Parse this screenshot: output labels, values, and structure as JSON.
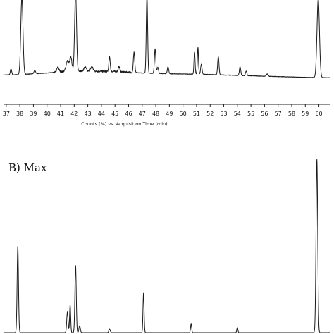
{
  "chart_data": [
    {
      "type": "line",
      "panel": "A",
      "title": "",
      "xlabel": "Counts (%) vs. Acquisition Time (min)",
      "ylabel": "",
      "xlim": [
        36.8,
        60.8
      ],
      "ylim": [
        0,
        100
      ],
      "ticks": [
        "37",
        "38",
        "39",
        "40",
        "41",
        "42",
        "43",
        "44",
        "45",
        "46",
        "47",
        "48",
        "49",
        "50",
        "51",
        "52",
        "53",
        "54",
        "55",
        "56",
        "57",
        "58",
        "59",
        "60"
      ],
      "baseline": [
        [
          36.8,
          5.0
        ],
        [
          38.0,
          5.5
        ],
        [
          40.0,
          7.5
        ],
        [
          41.0,
          9.0
        ],
        [
          42.0,
          10.5
        ],
        [
          43.0,
          10.0
        ],
        [
          44.0,
          9.5
        ],
        [
          45.0,
          9.5
        ],
        [
          46.0,
          8.5
        ],
        [
          47.0,
          7.5
        ],
        [
          48.0,
          7.0
        ],
        [
          49.0,
          6.5
        ],
        [
          50.0,
          6.3
        ],
        [
          51.0,
          6.0
        ],
        [
          52.0,
          5.6
        ],
        [
          53.0,
          5.0
        ],
        [
          54.0,
          4.5
        ],
        [
          55.0,
          4.0
        ],
        [
          56.0,
          3.5
        ],
        [
          57.0,
          3.0
        ],
        [
          58.0,
          2.5
        ],
        [
          59.0,
          2.0
        ],
        [
          60.8,
          1.5
        ]
      ],
      "peaks": [
        {
          "t": 37.35,
          "h": 7.5,
          "w": 0.05
        },
        {
          "t": 38.15,
          "h": 98,
          "w": 0.08
        },
        {
          "t": 39.1,
          "h": 4,
          "w": 0.06
        },
        {
          "t": 40.8,
          "h": 6,
          "w": 0.08
        },
        {
          "t": 41.5,
          "h": 13,
          "w": 0.1
        },
        {
          "t": 41.75,
          "h": 17,
          "w": 0.08
        },
        {
          "t": 42.1,
          "h": 100,
          "w": 0.07
        },
        {
          "t": 42.8,
          "h": 5,
          "w": 0.08
        },
        {
          "t": 43.3,
          "h": 6,
          "w": 0.08
        },
        {
          "t": 44.6,
          "h": 18,
          "w": 0.05
        },
        {
          "t": 45.3,
          "h": 6,
          "w": 0.06
        },
        {
          "t": 46.4,
          "h": 26,
          "w": 0.05
        },
        {
          "t": 47.35,
          "h": 100,
          "w": 0.05
        },
        {
          "t": 47.95,
          "h": 31,
          "w": 0.05
        },
        {
          "t": 48.15,
          "h": 8,
          "w": 0.05
        },
        {
          "t": 48.9,
          "h": 9,
          "w": 0.05
        },
        {
          "t": 50.85,
          "h": 28,
          "w": 0.04
        },
        {
          "t": 51.1,
          "h": 34,
          "w": 0.04
        },
        {
          "t": 51.35,
          "h": 13,
          "w": 0.05
        },
        {
          "t": 52.6,
          "h": 23,
          "w": 0.05
        },
        {
          "t": 54.2,
          "h": 11,
          "w": 0.05
        },
        {
          "t": 54.65,
          "h": 6,
          "w": 0.05
        },
        {
          "t": 56.2,
          "h": 3,
          "w": 0.06
        },
        {
          "t": 59.95,
          "h": 100,
          "w": 0.09
        }
      ]
    },
    {
      "type": "line",
      "panel": "B",
      "title": "B) Max",
      "xlabel": "",
      "ylabel": "",
      "xlim": [
        36.8,
        60.8
      ],
      "ylim": [
        0,
        100
      ],
      "baseline": [
        [
          36.8,
          0
        ],
        [
          60.8,
          0
        ]
      ],
      "peaks": [
        {
          "t": 37.85,
          "h": 50,
          "w": 0.05
        },
        {
          "t": 41.5,
          "h": 12,
          "w": 0.05
        },
        {
          "t": 41.7,
          "h": 16,
          "w": 0.04
        },
        {
          "t": 42.1,
          "h": 39,
          "w": 0.05
        },
        {
          "t": 42.4,
          "h": 4,
          "w": 0.05
        },
        {
          "t": 44.6,
          "h": 2,
          "w": 0.05
        },
        {
          "t": 47.1,
          "h": 23,
          "w": 0.04
        },
        {
          "t": 50.6,
          "h": 5,
          "w": 0.04
        },
        {
          "t": 54.0,
          "h": 3,
          "w": 0.04
        },
        {
          "t": 59.85,
          "h": 100,
          "w": 0.06
        }
      ]
    }
  ]
}
